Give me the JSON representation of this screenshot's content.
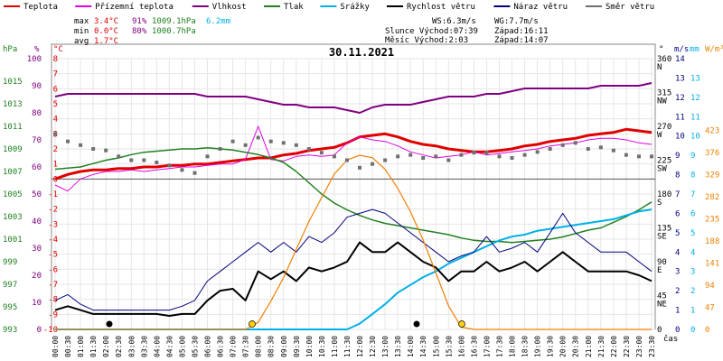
{
  "legend": [
    {
      "label": "Teplota",
      "color": "#e00000"
    },
    {
      "label": "Přízemní teplota",
      "color": "#e000e0"
    },
    {
      "label": "Vlhkost",
      "color": "#800080"
    },
    {
      "label": "Tlak",
      "color": "#208020"
    },
    {
      "label": "Srážky",
      "color": "#00b0e8"
    },
    {
      "label": "Rychlost větru",
      "color": "#000000"
    },
    {
      "label": "Náraz větru",
      "color": "#000080"
    },
    {
      "label": "Směr větru",
      "color": "#707070"
    }
  ],
  "stats": {
    "max_label": "max",
    "min_label": "min",
    "avg_label": "avg",
    "max_temp": "3.4°C",
    "max_hum": "91%",
    "max_press": "1009.1hPa",
    "max_rain": "6.2mm",
    "min_temp": "0.0°C",
    "min_hum": "80%",
    "min_press": "1000.7hPa",
    "avg_temp": "1.7°C"
  },
  "astro": {
    "ws": "WS:6.3m/s",
    "wg": "WG:7.7m/s",
    "sun": "Slunce Východ:07:39",
    "sun_set": "Západ:16:11",
    "moon": "Měsíc  Východ:2:03",
    "moon_set": "Západ:14:07"
  },
  "title": "30.11.2021",
  "axis_units": {
    "hpa": "hPa",
    "pct": "%",
    "degc": "°C",
    "deg": "°",
    "ms": "m/s",
    "mm": "mm",
    "wm2": "W/m²",
    "cas": "čas"
  },
  "chart_data": {
    "type": "line",
    "title": "30.11.2021",
    "x": [
      "00:00",
      "00:30",
      "01:00",
      "01:30",
      "02:00",
      "02:30",
      "03:00",
      "03:30",
      "04:00",
      "04:30",
      "05:00",
      "05:30",
      "06:00",
      "06:30",
      "07:00",
      "07:30",
      "08:00",
      "08:30",
      "09:00",
      "09:30",
      "10:00",
      "10:30",
      "11:00",
      "11:30",
      "12:00",
      "12:30",
      "13:00",
      "13:30",
      "14:00",
      "14:30",
      "15:00",
      "15:30",
      "16:00",
      "16:30",
      "17:00",
      "17:30",
      "18:00",
      "18:30",
      "19:00",
      "19:30",
      "20:00",
      "20:30",
      "21:00",
      "21:30",
      "22:00",
      "22:30",
      "23:00",
      "23:30"
    ],
    "x_ticks": [
      "00:00",
      "00:30",
      "01:00",
      "01:30",
      "02:00",
      "02:30",
      "03:00",
      "03:30",
      "04:00",
      "04:30",
      "05:00",
      "05:30",
      "06:00",
      "06:30",
      "07:00",
      "07:30",
      "08:00",
      "08:30",
      "09:00",
      "09:30",
      "10:00",
      "10:30",
      "11:00",
      "11:30",
      "12:00",
      "12:30",
      "13:00",
      "13:30",
      "14:00",
      "14:30",
      "15:00",
      "15:30",
      "16:00",
      "16:30",
      "17:00",
      "17:30",
      "18:00",
      "18:30",
      "19:00",
      "19:30",
      "20:00",
      "20:30",
      "21:00",
      "21:30",
      "22:00",
      "22:30",
      "23:00",
      "23:30"
    ],
    "axes": {
      "hpa": {
        "range": [
          993,
          1017
        ],
        "ticks": [
          993,
          995,
          997,
          999,
          1001,
          1003,
          1005,
          1007,
          1009,
          1011,
          1013,
          1015
        ]
      },
      "pct": {
        "range": [
          0,
          100
        ],
        "ticks": [
          0,
          10,
          20,
          30,
          40,
          50,
          60,
          70,
          80,
          90,
          100
        ]
      },
      "degc": {
        "range": [
          -10,
          8
        ],
        "ticks": [
          8,
          7,
          6,
          5,
          4,
          3,
          2,
          1,
          0,
          -1,
          -2,
          -3,
          -4,
          -5,
          -6,
          -7,
          -8,
          -9,
          -10
        ]
      },
      "deg": {
        "ticks": [
          {
            "v": 0,
            "l": "0"
          },
          {
            "v": 45,
            "l": "45\nNE"
          },
          {
            "v": 90,
            "l": "90\nE"
          },
          {
            "v": 135,
            "l": "135\nSE"
          },
          {
            "v": 180,
            "l": "180\nS"
          },
          {
            "v": 225,
            "l": "225\nSW"
          },
          {
            "v": 270,
            "l": "270\nW"
          },
          {
            "v": 315,
            "l": "315\nNW"
          },
          {
            "v": 360,
            "l": "360\nN"
          }
        ]
      },
      "ms": {
        "range": [
          0,
          14
        ],
        "ticks": [
          0,
          1,
          2,
          3,
          4,
          5,
          6,
          7,
          8,
          9,
          10,
          11,
          12,
          13,
          14
        ]
      },
      "mm": {
        "range": [
          0,
          14
        ],
        "ticks": [
          0,
          1,
          2,
          3,
          4,
          5,
          6,
          7,
          8,
          9,
          10,
          11,
          12,
          13
        ]
      },
      "wm2": {
        "ticks": [
          0,
          47,
          94,
          141,
          188,
          235,
          282,
          329,
          376,
          423
        ]
      }
    },
    "series": [
      {
        "name": "Teplota",
        "color": "#e00000",
        "unit": "°C",
        "values": [
          0.0,
          0.3,
          0.5,
          0.6,
          0.6,
          0.7,
          0.7,
          0.8,
          0.8,
          0.9,
          0.9,
          1.0,
          1.0,
          1.1,
          1.2,
          1.3,
          1.4,
          1.4,
          1.6,
          1.7,
          1.9,
          2.0,
          2.1,
          2.4,
          2.8,
          2.9,
          3.0,
          2.8,
          2.5,
          2.3,
          2.2,
          2.0,
          1.9,
          1.8,
          1.8,
          1.9,
          2.0,
          2.2,
          2.3,
          2.5,
          2.6,
          2.7,
          2.9,
          3.0,
          3.1,
          3.3,
          3.2,
          3.1
        ]
      },
      {
        "name": "Přízemní teplota",
        "color": "#e000e0",
        "unit": "°C",
        "values": [
          -0.4,
          -0.8,
          0.0,
          0.3,
          0.5,
          0.5,
          0.6,
          0.5,
          0.6,
          0.7,
          0.8,
          0.8,
          0.9,
          1.0,
          1.0,
          1.3,
          3.5,
          1.3,
          1.2,
          1.5,
          1.6,
          1.5,
          1.6,
          2.4,
          2.8,
          2.6,
          2.5,
          2.2,
          1.8,
          1.6,
          1.4,
          1.5,
          1.6,
          1.8,
          1.6,
          1.7,
          1.8,
          1.9,
          2.0,
          2.2,
          2.3,
          2.4,
          2.6,
          2.7,
          2.7,
          2.6,
          2.4,
          2.3
        ]
      },
      {
        "name": "Vlhkost",
        "color": "#800080",
        "unit": "%",
        "values": [
          86,
          87,
          87,
          87,
          87,
          87,
          87,
          87,
          87,
          87,
          87,
          87,
          86,
          86,
          86,
          86,
          85,
          84,
          83,
          83,
          82,
          82,
          82,
          81,
          80,
          82,
          83,
          83,
          83,
          84,
          85,
          86,
          86,
          86,
          87,
          87,
          88,
          89,
          89,
          89,
          89,
          89,
          89,
          90,
          90,
          90,
          90,
          91
        ]
      },
      {
        "name": "Tlak",
        "color": "#208020",
        "unit": "hPa",
        "values": [
          1007.2,
          1007.3,
          1007.4,
          1007.7,
          1008.0,
          1008.2,
          1008.5,
          1008.7,
          1008.8,
          1008.9,
          1009.0,
          1009.0,
          1009.1,
          1009.0,
          1008.9,
          1008.7,
          1008.5,
          1008.2,
          1007.8,
          1007.0,
          1006.0,
          1005.0,
          1004.2,
          1003.6,
          1003.1,
          1002.7,
          1002.4,
          1002.2,
          1002.0,
          1001.8,
          1001.6,
          1001.4,
          1001.1,
          1000.9,
          1000.8,
          1000.8,
          1000.7,
          1000.8,
          1000.9,
          1001.0,
          1001.2,
          1001.5,
          1001.8,
          1002.0,
          1002.5,
          1003.0,
          1003.6,
          1004.3
        ]
      },
      {
        "name": "Srážky",
        "color": "#00b0e8",
        "unit": "mm",
        "values": [
          0,
          0,
          0,
          0,
          0,
          0,
          0,
          0,
          0,
          0,
          0,
          0,
          0,
          0,
          0,
          0,
          0,
          0,
          0,
          0,
          0,
          0,
          0,
          0,
          0.3,
          0.8,
          1.3,
          1.9,
          2.3,
          2.7,
          3.0,
          3.4,
          3.7,
          4.0,
          4.3,
          4.6,
          4.8,
          4.9,
          5.1,
          5.2,
          5.3,
          5.4,
          5.5,
          5.6,
          5.7,
          5.9,
          6.1,
          6.2
        ]
      },
      {
        "name": "Rychlost větru",
        "color": "#000000",
        "unit": "m/s",
        "values": [
          1.0,
          1.2,
          1.0,
          0.8,
          0.8,
          0.8,
          0.8,
          0.8,
          0.8,
          0.7,
          0.8,
          0.8,
          1.5,
          2.0,
          2.1,
          1.5,
          3.0,
          2.6,
          3.0,
          2.5,
          3.2,
          3.0,
          3.2,
          3.5,
          4.5,
          4.0,
          4.0,
          4.5,
          4.0,
          3.5,
          3.2,
          2.5,
          3.0,
          3.0,
          3.5,
          3.0,
          3.2,
          3.5,
          3.0,
          3.5,
          4.0,
          3.5,
          3.0,
          3.0,
          3.0,
          3.0,
          2.8,
          2.5
        ]
      },
      {
        "name": "Náraz větru",
        "color": "#000080",
        "unit": "m/s",
        "values": [
          1.5,
          1.8,
          1.3,
          1.0,
          1.0,
          1.0,
          1.0,
          1.0,
          1.0,
          1.0,
          1.2,
          1.5,
          2.5,
          3.0,
          3.5,
          4.0,
          4.5,
          4.0,
          4.5,
          4.0,
          4.8,
          4.5,
          5.0,
          5.8,
          6.0,
          6.2,
          6.0,
          5.5,
          5.0,
          4.5,
          4.0,
          3.5,
          3.8,
          4.0,
          4.8,
          4.0,
          4.2,
          4.5,
          4.0,
          5.0,
          6.0,
          5.0,
          4.5,
          4.0,
          4.0,
          4.0,
          3.5,
          3.0
        ]
      },
      {
        "name": "Slunce",
        "color": "#f08000",
        "unit": "W/m²",
        "values": [
          0,
          0,
          0,
          0,
          0,
          0,
          0,
          0,
          0,
          0,
          0,
          0,
          0,
          0,
          0,
          0,
          15,
          60,
          110,
          170,
          230,
          280,
          330,
          360,
          370,
          365,
          340,
          300,
          250,
          190,
          120,
          50,
          5,
          0,
          0,
          0,
          0,
          0,
          0,
          0,
          0,
          0,
          0,
          0,
          0,
          0,
          0,
          0
        ]
      },
      {
        "name": "Směr větru",
        "color": "#707070",
        "unit": "°",
        "values": [
          260,
          250,
          245,
          240,
          238,
          230,
          225,
          225,
          222,
          218,
          212,
          208,
          230,
          240,
          250,
          245,
          255,
          250,
          248,
          245,
          240,
          235,
          230,
          225,
          215,
          220,
          225,
          230,
          232,
          228,
          230,
          225,
          232,
          235,
          235,
          230,
          228,
          232,
          236,
          240,
          245,
          248,
          240,
          242,
          238,
          232,
          230,
          230
        ]
      }
    ],
    "grid": true
  }
}
